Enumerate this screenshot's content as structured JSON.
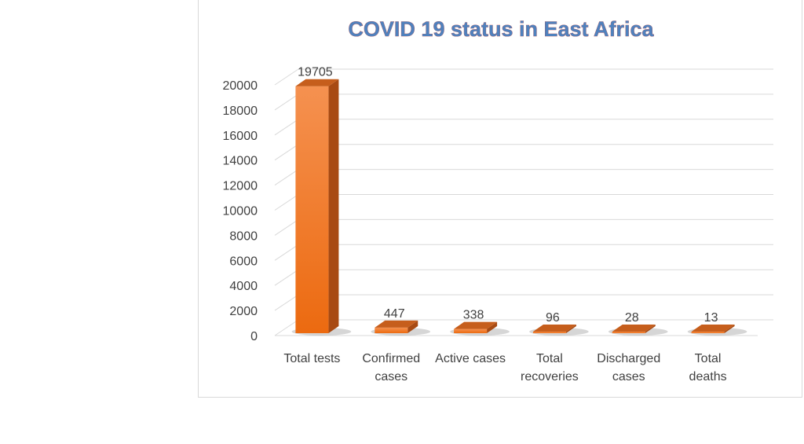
{
  "chart_data": {
    "type": "bar",
    "title": "COVID 19 status in East Africa",
    "categories": [
      [
        "Total tests"
      ],
      [
        "Confirmed",
        "cases"
      ],
      [
        "Active cases"
      ],
      [
        "Total",
        "recoveries"
      ],
      [
        "Discharged",
        "cases"
      ],
      [
        "Total",
        "deaths"
      ]
    ],
    "values": [
      19705,
      447,
      338,
      96,
      28,
      13
    ],
    "ylim": [
      0,
      20000
    ],
    "yticks": [
      0,
      2000,
      4000,
      6000,
      8000,
      10000,
      12000,
      14000,
      16000,
      18000,
      20000
    ],
    "grid": true,
    "legend": "none",
    "colors": {
      "bar_front": "#f07a24",
      "bar_side": "#a84a12",
      "bar_top": "#c65e1c",
      "title_fill": "#4f81bd",
      "title_outline": "#c0504d",
      "grid": "#d9d9d9"
    }
  }
}
